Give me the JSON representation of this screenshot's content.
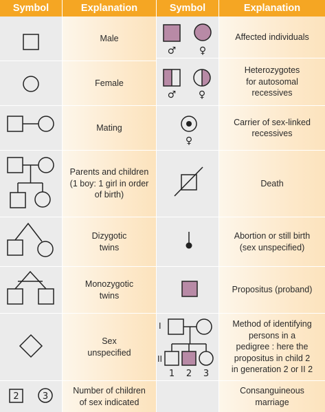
{
  "headers": {
    "left_symbol": "Symbol",
    "left_explanation": "Explanation",
    "right_symbol": "Symbol",
    "right_explanation": "Explanation"
  },
  "left": [
    {
      "symbol": "male-square",
      "explanation": "Male"
    },
    {
      "symbol": "female-circle",
      "explanation": "Female"
    },
    {
      "symbol": "mating",
      "explanation": "Mating"
    },
    {
      "symbol": "parents-children",
      "explanation": "Parents and children\n(1 boy: 1 girl in order\nof birth)"
    },
    {
      "symbol": "dizygotic-twins",
      "explanation": "Dizygotic\ntwins"
    },
    {
      "symbol": "monozygotic-twins",
      "explanation": "Monozygotic\ntwins"
    },
    {
      "symbol": "sex-unspecified-diamond",
      "explanation": "Sex\nunspecified"
    },
    {
      "symbol": "number-of-children",
      "explanation": "Number of children\nof sex indicated",
      "numbers": [
        "2",
        "3"
      ]
    }
  ],
  "right": [
    {
      "symbol": "affected",
      "explanation": "Affected individuals",
      "sex_signs": [
        "♂",
        "♀"
      ]
    },
    {
      "symbol": "heterozygotes",
      "explanation": "Heterozygotes\nfor autosomal\nrecessives",
      "sex_signs": [
        "♂",
        "♀"
      ]
    },
    {
      "symbol": "carrier-sex-linked",
      "explanation": "Carrier of sex-linked\nrecessives",
      "sex_signs": [
        "♀"
      ]
    },
    {
      "symbol": "death",
      "explanation": "Death"
    },
    {
      "symbol": "abortion",
      "explanation": "Abortion or still birth\n(sex unspecified)"
    },
    {
      "symbol": "propositus",
      "explanation": "Propositus (proband)"
    },
    {
      "symbol": "pedigree-identification",
      "explanation": "Method of identifying\npersons in a\npedigree : here the\npropositus in child 2\nin generation 2 or II 2",
      "generation_labels": [
        "I",
        "II"
      ],
      "child_numbers": [
        "1",
        "2",
        "3"
      ]
    },
    {
      "symbol": "consanguineous",
      "explanation": "Consanguineous\nmarriage"
    }
  ],
  "colors": {
    "header": "#f5a623",
    "affected_fill": "#b88aa6",
    "symbol_bg": "#ebebeb",
    "explanation_bg": "#fde8c9"
  }
}
